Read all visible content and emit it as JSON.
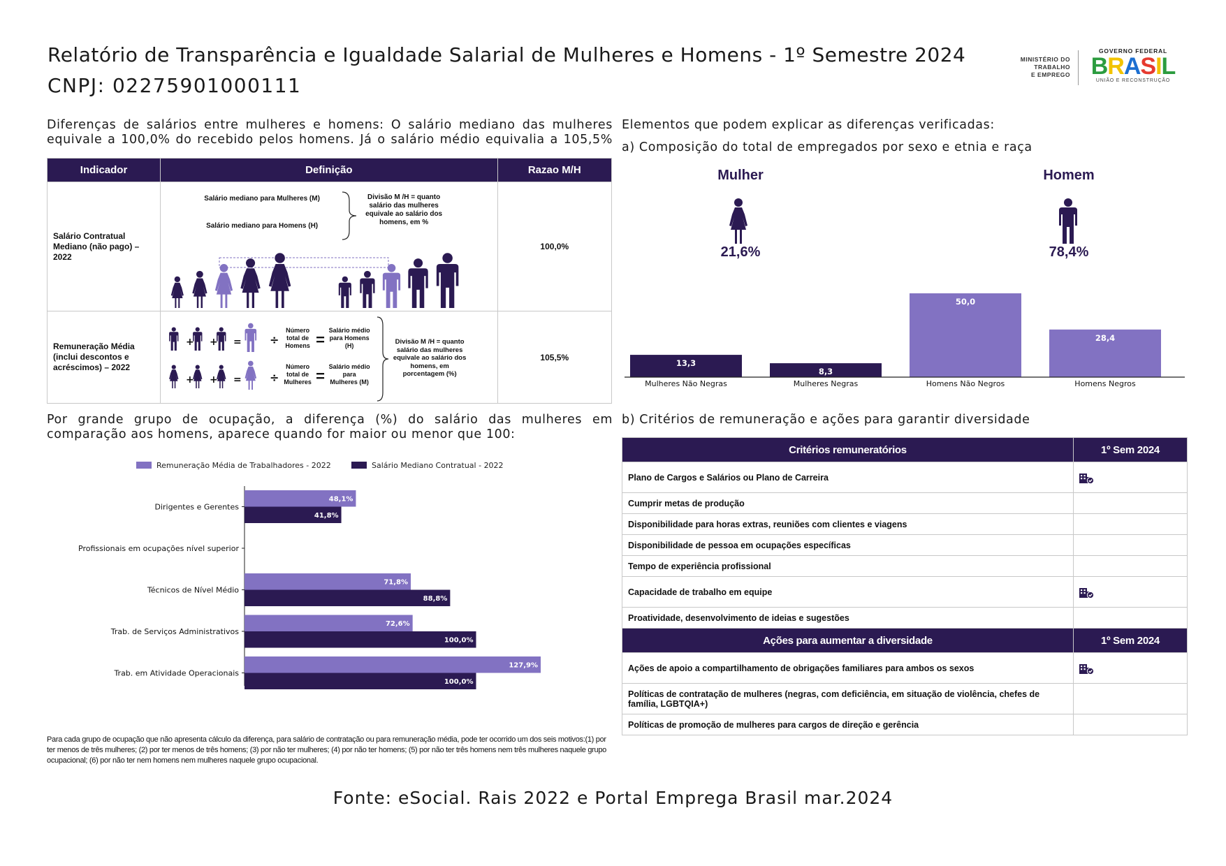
{
  "header": {
    "title": "Relatório de Transparência e Igualdade Salarial de Mulheres e Homens - 1º Semestre 2024",
    "cnpj": "CNPJ: 02275901000111",
    "logo_ministry_line1": "MINISTÉRIO DO",
    "logo_ministry_line2": "TRABALHO",
    "logo_ministry_line3": "E EMPREGO",
    "logo_gov_top": "GOVERNO FEDERAL",
    "logo_gov_word": "BRASIL",
    "logo_gov_bottom": "UNIÃO E RECONSTRUÇÃO"
  },
  "left_intro": "Diferenças de salários entre mulheres e homens: O salário mediano das mulheres equivale a 100,0% do recebido pelos homens. Já o salário médio equivalia a 105,5%",
  "table1": {
    "headers": [
      "Indicador",
      "Definição",
      "Razao M/H"
    ],
    "row1": {
      "indicator": "Salário Contratual Mediano (não pago) – 2022",
      "line_m": "Salário mediano para Mulheres (M)",
      "line_h": "Salário mediano para Homens (H)",
      "division": "Divisão M /H = quanto salário das mulheres equivale ao salário dos homens, em %",
      "ratio": "100,0%"
    },
    "row2": {
      "indicator": "Remuneração Média (inclui descontos e acréscimos) – 2022",
      "num_h": "Número total de Homens",
      "avg_h": "Salário médio para Homens (H)",
      "num_m": "Número total de Mulheres",
      "avg_m": "Salário médio para Mulheres (M)",
      "division": "Divisão M /H = quanto salário das mulheres equivale ao salário dos homens, em porcentagem (%)",
      "ratio": "105,5%"
    }
  },
  "right_intro": "Elementos que podem explicar as diferenças verificadas:",
  "section_a": "a) Composição do total de empregados por sexo e etnia e raça",
  "gender_split": {
    "female_label": "Mulher",
    "female_value": "21,6%",
    "male_label": "Homem",
    "male_value": "78,4%"
  },
  "left_section2": "Por grande grupo de ocupação, a diferença (%) do salário das mulheres em comparação aos homens, aparece quando for maior ou menor que 100:",
  "section_b": "b) Critérios de remuneração e ações para garantir diversidade",
  "criteria": {
    "header_left": "Critérios remuneratórios",
    "header_right": "1º Sem 2024",
    "rows": [
      {
        "label": "Plano de Cargos e Salários ou Plano de Carreira",
        "checked": true
      },
      {
        "label": "Cumprir metas de produção",
        "checked": false
      },
      {
        "label": "Disponibilidade para horas extras, reuniões com clientes e viagens",
        "checked": false
      },
      {
        "label": "Disponibilidade de pessoa em ocupações específicas",
        "checked": false
      },
      {
        "label": "Tempo de experiência profissional",
        "checked": false
      },
      {
        "label": "Capacidade de trabalho em equipe",
        "checked": true
      },
      {
        "label": "Proatividade, desenvolvimento de ideias e sugestões",
        "checked": false
      }
    ]
  },
  "actions": {
    "header_left": "Ações para aumentar a diversidade",
    "header_right": "1º Sem 2024",
    "rows": [
      {
        "label": "Ações de apoio a compartilhamento de obrigações familiares para ambos os sexos",
        "checked": true
      },
      {
        "label": "Políticas de contratação de mulheres (negras, com deficiência, em situação de violência, chefes de família, LGBTQIA+)",
        "checked": false
      },
      {
        "label": "Políticas de promoção de mulheres para cargos de direção e gerência",
        "checked": false
      }
    ]
  },
  "footnote": "Para cada grupo de ocupação que não apresenta cálculo da diferença, para salário de contratação ou para remuneração média, pode ter ocorrido um dos seis motivos:(1) por ter menos de três mulheres; (2) por ter menos de três homens; (3) por não ter mulheres; (4) por não ter homens; (5) por não ter três homens nem três mulheres naquele grupo ocupacional; (6) por não ter nem homens nem mulheres naquele grupo ocupacional.",
  "source": "Fonte: eSocial. Rais 2022 e Portal Emprega Brasil mar.2024",
  "colors": {
    "dark": "#2b1a52",
    "light": "#8272c2"
  },
  "chart_data": [
    {
      "type": "bar",
      "categories": [
        "Mulheres Não Negras",
        "Mulheres Negras",
        "Homens Não Negros",
        "Homens Negros"
      ],
      "values": [
        13.3,
        8.3,
        50.0,
        28.4
      ],
      "value_labels": [
        "13,3",
        "8,3",
        "50,0",
        "28,4"
      ],
      "colors": [
        "#2b1a52",
        "#2b1a52",
        "#8272c2",
        "#8272c2"
      ],
      "ylim": [
        0,
        60
      ]
    },
    {
      "type": "bar",
      "orientation": "horizontal",
      "categories": [
        "Dirigentes e Gerentes",
        "Profissionais em ocupações nível superior",
        "Técnicos de Nível Médio",
        "Trab. de Serviços Administrativos",
        "Trab. em Atividade Operacionais"
      ],
      "series": [
        {
          "name": "Remuneração Média de Trabalhadores - 2022",
          "color": "#8272c2",
          "values": [
            48.1,
            null,
            71.8,
            72.6,
            127.9
          ],
          "labels": [
            "48,1%",
            "",
            "71,8%",
            "72,6%",
            "127,9%"
          ]
        },
        {
          "name": "Salário Mediano Contratual - 2022",
          "color": "#2b1a52",
          "values": [
            41.8,
            null,
            88.8,
            100.0,
            100.0
          ],
          "labels": [
            "41,8%",
            "",
            "88,8%",
            "100,0%",
            "100,0%"
          ]
        }
      ],
      "xlim": [
        0,
        130
      ],
      "legend": "top"
    }
  ]
}
